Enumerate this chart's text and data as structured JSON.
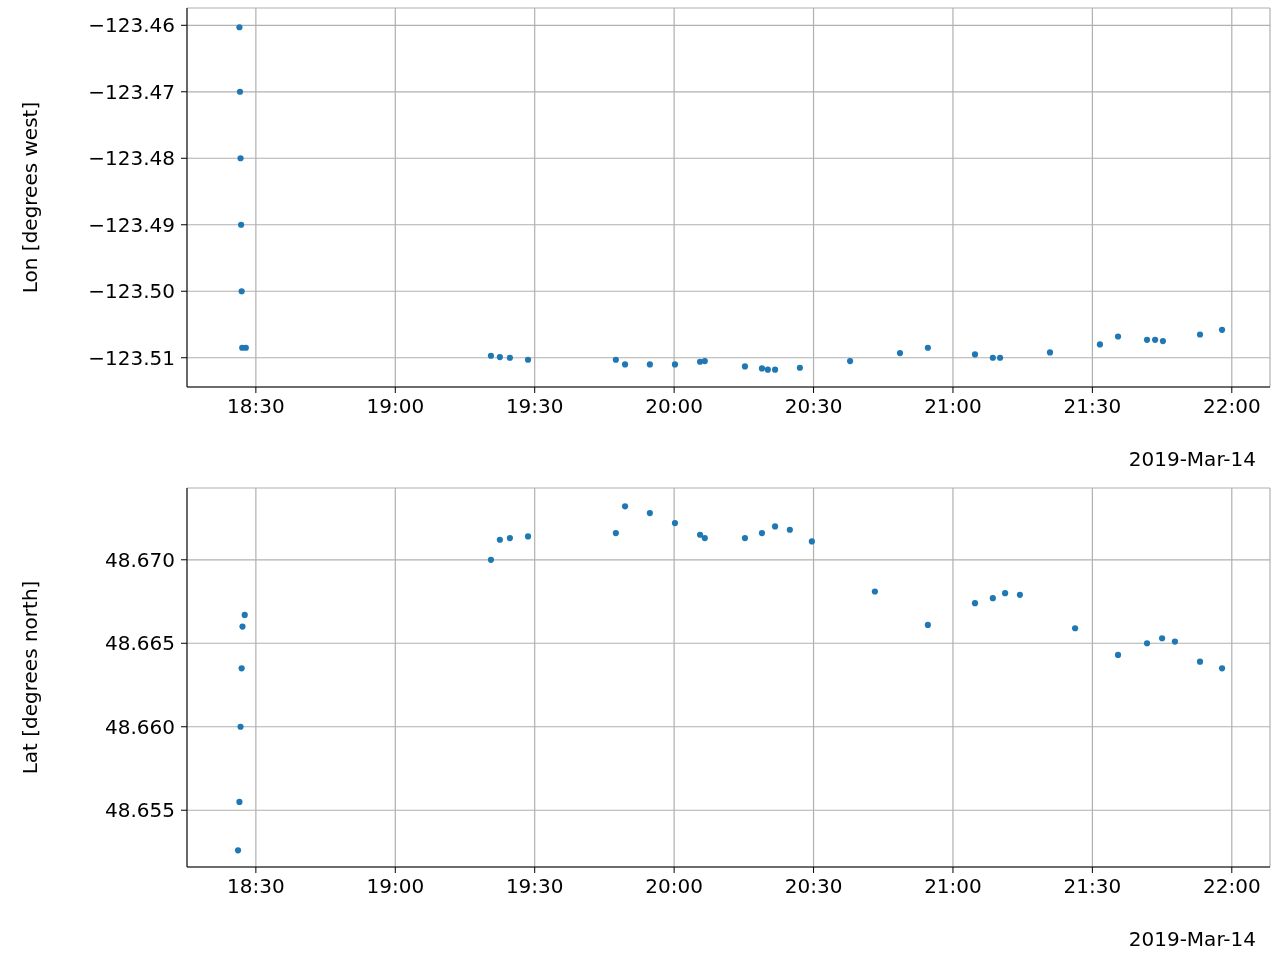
{
  "chart_data": [
    {
      "type": "scatter",
      "ylabel": "Lon [degrees west]",
      "xlabel": "2019-Mar-14",
      "grid": true,
      "marker": "circle",
      "xlim": [
        18.253,
        22.137
      ],
      "xticks": [
        {
          "value": 18.5,
          "label": "18:30"
        },
        {
          "value": 19,
          "label": "19:00"
        },
        {
          "value": 19.5,
          "label": "19:30"
        },
        {
          "value": 20,
          "label": "20:00"
        },
        {
          "value": 20.5,
          "label": "20:30"
        },
        {
          "value": 21,
          "label": "21:00"
        },
        {
          "value": 21.5,
          "label": "21:30"
        },
        {
          "value": 22,
          "label": "22:00"
        }
      ],
      "ylim": [
        -123.5144,
        -123.4574
      ],
      "yticks": [
        {
          "value": -123.51,
          "label": "−123.51"
        },
        {
          "value": -123.5,
          "label": "−123.50"
        },
        {
          "value": -123.49,
          "label": "−123.49"
        },
        {
          "value": -123.48,
          "label": "−123.48"
        },
        {
          "value": -123.47,
          "label": "−123.47"
        },
        {
          "value": -123.46,
          "label": "−123.46"
        }
      ],
      "series": [
        {
          "color": "#1f77b4",
          "x": [
            18.441,
            18.443,
            18.445,
            18.447,
            18.449,
            18.451,
            18.464,
            19.343,
            19.375,
            19.411,
            19.476,
            19.791,
            19.824,
            19.913,
            20.003,
            20.093,
            20.11,
            20.254,
            20.315,
            20.336,
            20.362,
            20.451,
            20.631,
            20.81,
            20.91,
            21.079,
            21.143,
            21.169,
            21.348,
            21.527,
            21.592,
            21.696,
            21.725,
            21.753,
            21.886,
            21.965
          ],
          "values": [
            -123.4603,
            -123.47,
            -123.48,
            -123.49,
            -123.5,
            -123.5085,
            -123.5085,
            -123.5097,
            -123.5099,
            -123.51,
            -123.5103,
            -123.5103,
            -123.511,
            -123.511,
            -123.511,
            -123.5106,
            -123.5105,
            -123.5113,
            -123.5116,
            -123.5118,
            -123.5118,
            -123.5115,
            -123.5105,
            -123.5093,
            -123.5085,
            -123.5095,
            -123.51,
            -123.51,
            -123.5092,
            -123.508,
            -123.5068,
            -123.5073,
            -123.5073,
            -123.5075,
            -123.5065,
            -123.5058
          ]
        }
      ]
    },
    {
      "type": "scatter",
      "ylabel": "Lat [degrees north]",
      "xlabel": "2019-Mar-14",
      "grid": true,
      "marker": "circle",
      "xlim": [
        18.253,
        22.137
      ],
      "xticks": [
        {
          "value": 18.5,
          "label": "18:30"
        },
        {
          "value": 19,
          "label": "19:00"
        },
        {
          "value": 19.5,
          "label": "19:30"
        },
        {
          "value": 20,
          "label": "20:00"
        },
        {
          "value": 20.5,
          "label": "20:30"
        },
        {
          "value": 21,
          "label": "21:00"
        },
        {
          "value": 21.5,
          "label": "21:30"
        },
        {
          "value": 22,
          "label": "22:00"
        }
      ],
      "ylim": [
        48.6516,
        48.6743
      ],
      "yticks": [
        {
          "value": 48.655,
          "label": "48.655"
        },
        {
          "value": 48.66,
          "label": "48.660"
        },
        {
          "value": 48.665,
          "label": "48.665"
        },
        {
          "value": 48.67,
          "label": "48.670"
        }
      ],
      "series": [
        {
          "color": "#1f77b4",
          "x": [
            18.436,
            18.441,
            18.445,
            18.449,
            18.452,
            18.46,
            19.343,
            19.375,
            19.411,
            19.476,
            19.791,
            19.824,
            19.913,
            20.003,
            20.093,
            20.11,
            20.254,
            20.315,
            20.362,
            20.415,
            20.494,
            20.72,
            20.91,
            21.079,
            21.143,
            21.187,
            21.24,
            21.438,
            21.592,
            21.696,
            21.75,
            21.796,
            21.886,
            21.965
          ],
          "values": [
            48.6526,
            48.6555,
            48.66,
            48.6635,
            48.666,
            48.6667,
            48.67,
            48.6712,
            48.6713,
            48.6714,
            48.6716,
            48.6732,
            48.6728,
            48.6722,
            48.6715,
            48.6713,
            48.6713,
            48.6716,
            48.672,
            48.6718,
            48.6711,
            48.6681,
            48.6661,
            48.6674,
            48.6677,
            48.668,
            48.6679,
            48.6659,
            48.6643,
            48.665,
            48.6653,
            48.6651,
            48.6639,
            48.6635
          ]
        }
      ]
    }
  ]
}
